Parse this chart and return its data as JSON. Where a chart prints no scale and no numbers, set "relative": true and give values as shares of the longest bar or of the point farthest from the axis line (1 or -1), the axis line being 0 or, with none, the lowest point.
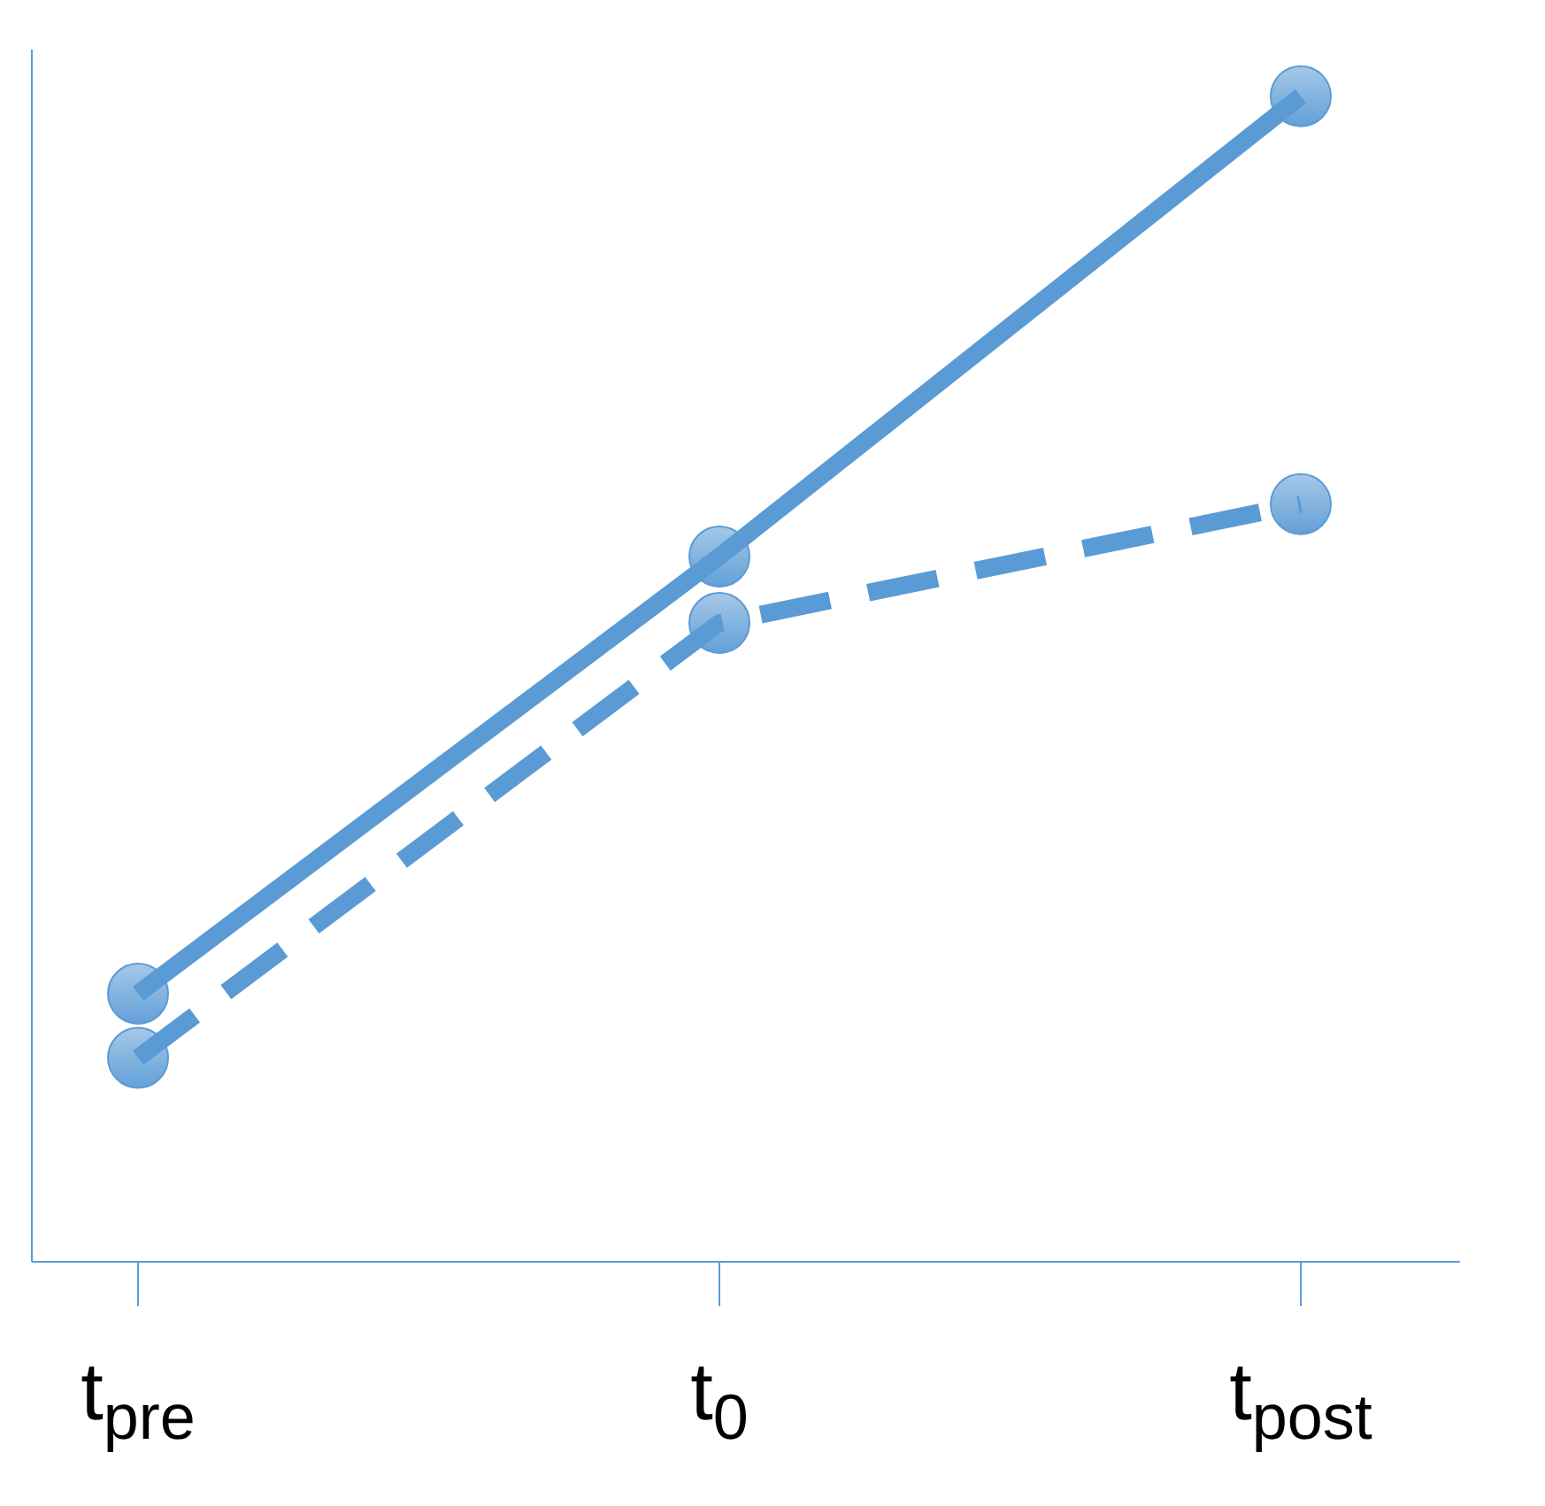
{
  "chart_data": {
    "type": "line",
    "relative": true,
    "categories": [
      "t$_{pre}$",
      "t$_{0}$",
      "t$_{post}$"
    ],
    "marker": "circle",
    "grid": false,
    "legend": false,
    "series": [
      {
        "color": "#5b9bd5",
        "line_style": "solid",
        "values": [
          0.23,
          0.605,
          1
        ]
      },
      {
        "color": "#5b9bd5",
        "line_style": "dashed",
        "values": [
          0.175,
          0.548,
          0.65
        ]
      }
    ]
  }
}
